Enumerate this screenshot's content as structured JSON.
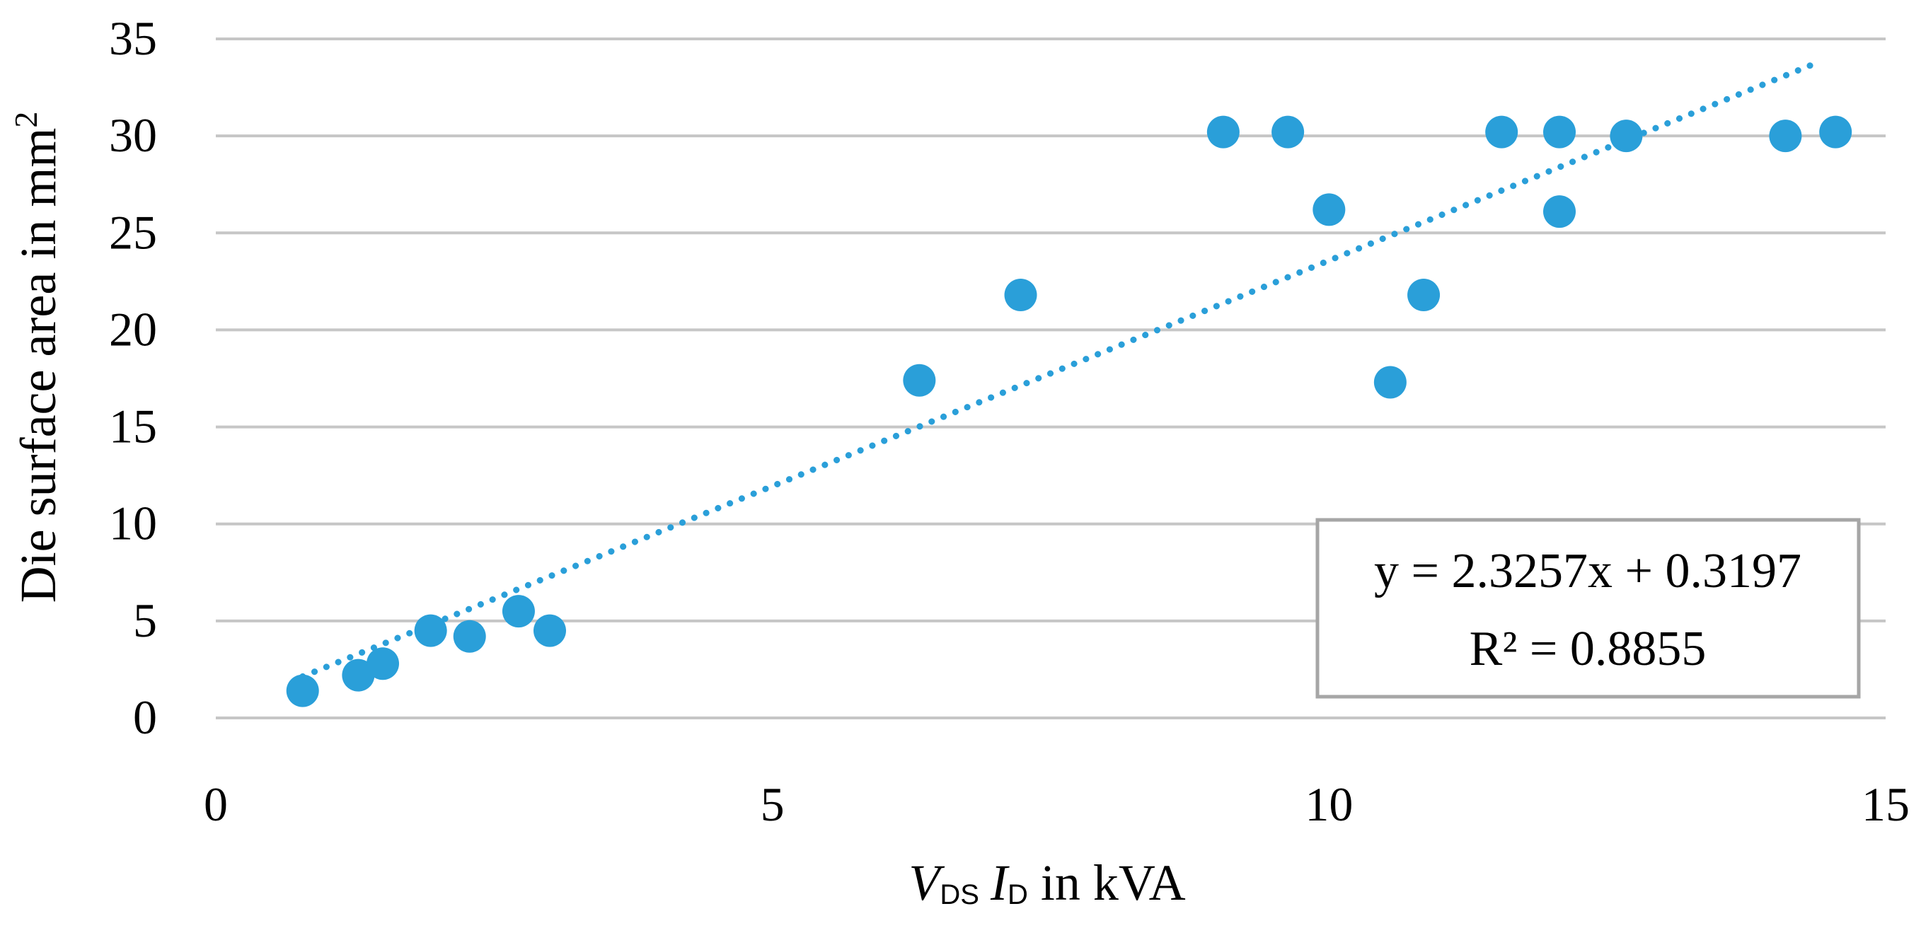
{
  "chart_data": {
    "type": "scatter",
    "xlabel": "V",
    "xlabel_parts": {
      "v": "V",
      "ds": "DS",
      "i": "I",
      "d": "D",
      "unit": " in kVA"
    },
    "ylabel": "Die surface area in mm²",
    "ylabel_parts": {
      "text": "Die surface area in mm",
      "sup": "2"
    },
    "xlim": [
      0,
      15
    ],
    "ylim": [
      0,
      35
    ],
    "xticks": [
      "0",
      "5",
      "10",
      "15"
    ],
    "yticks": [
      "0",
      "5",
      "10",
      "15",
      "20",
      "25",
      "30",
      "35"
    ],
    "grid": "horizontal",
    "marker_color": "#2a9fd9",
    "trendline_color": "#2a9fd9",
    "points": [
      {
        "x": 0.78,
        "y": 1.4
      },
      {
        "x": 1.28,
        "y": 2.2
      },
      {
        "x": 1.5,
        "y": 2.8
      },
      {
        "x": 1.93,
        "y": 4.5
      },
      {
        "x": 2.28,
        "y": 4.2
      },
      {
        "x": 2.72,
        "y": 5.5
      },
      {
        "x": 3.0,
        "y": 4.5
      },
      {
        "x": 6.32,
        "y": 17.4
      },
      {
        "x": 7.23,
        "y": 21.8
      },
      {
        "x": 9.05,
        "y": 30.2
      },
      {
        "x": 9.63,
        "y": 30.2
      },
      {
        "x": 10.0,
        "y": 26.2
      },
      {
        "x": 10.55,
        "y": 17.3
      },
      {
        "x": 10.85,
        "y": 21.8
      },
      {
        "x": 11.55,
        "y": 30.2
      },
      {
        "x": 12.07,
        "y": 30.2
      },
      {
        "x": 12.07,
        "y": 26.1
      },
      {
        "x": 12.67,
        "y": 30.0
      },
      {
        "x": 14.1,
        "y": 30.0
      },
      {
        "x": 14.55,
        "y": 30.2
      }
    ],
    "trendline": {
      "style": "dotted",
      "slope": 2.3257,
      "intercept": 0.3197,
      "x_range": [
        0.78,
        14.4
      ],
      "equation": "y = 2.3257x + 0.3197",
      "r_squared": "R² = 0.8855"
    }
  }
}
